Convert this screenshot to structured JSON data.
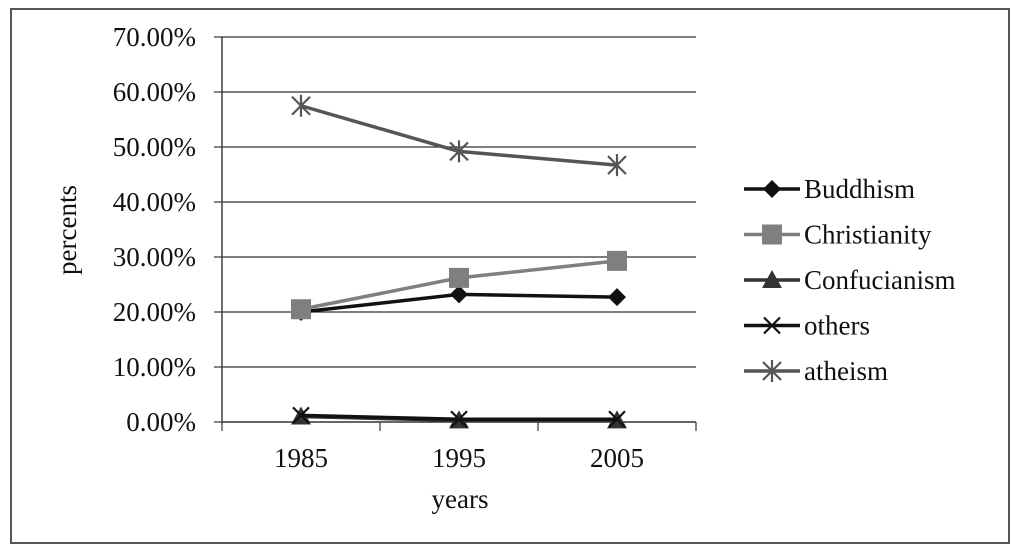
{
  "chart_data": {
    "type": "line",
    "title": "",
    "xlabel": "years",
    "ylabel": "percents",
    "categories": [
      "1985",
      "1995",
      "2005"
    ],
    "ylim": [
      0,
      0.7
    ],
    "yticks": [
      "0.00%",
      "10.00%",
      "20.00%",
      "30.00%",
      "40.00%",
      "50.00%",
      "60.00%",
      "70.00%"
    ],
    "grid": true,
    "legend_position": "right",
    "series": [
      {
        "name": "Buddhism",
        "values": [
          0.2,
          0.232,
          0.227
        ],
        "color": "#111111",
        "marker": "diamond"
      },
      {
        "name": "Christianity",
        "values": [
          0.205,
          0.262,
          0.293
        ],
        "color": "#7f7f7f",
        "marker": "square"
      },
      {
        "name": "Confucianism",
        "values": [
          0.01,
          0.003,
          0.003
        ],
        "color": "#333333",
        "marker": "triangle"
      },
      {
        "name": "others",
        "values": [
          0.012,
          0.005,
          0.005
        ],
        "color": "#111111",
        "marker": "x"
      },
      {
        "name": "atheism",
        "values": [
          0.575,
          0.492,
          0.467
        ],
        "color": "#555555",
        "marker": "star"
      }
    ]
  }
}
